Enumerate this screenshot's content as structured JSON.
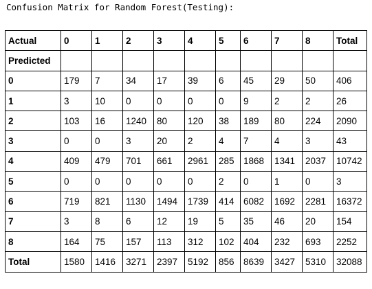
{
  "title": "Confusion Matrix for Random Forest(Testing):",
  "table": {
    "header": {
      "corner": "Actual",
      "columns": [
        "0",
        "1",
        "2",
        "3",
        "4",
        "5",
        "6",
        "7",
        "8",
        "Total"
      ]
    },
    "sub_header": "Predicted",
    "rows": [
      {
        "label": "0",
        "cells": [
          "179",
          "7",
          "34",
          "17",
          "39",
          "6",
          "45",
          "29",
          "50",
          "406"
        ]
      },
      {
        "label": "1",
        "cells": [
          "3",
          "10",
          "0",
          "0",
          "0",
          "0",
          "9",
          "2",
          "2",
          "26"
        ]
      },
      {
        "label": "2",
        "cells": [
          "103",
          "16",
          "1240",
          "80",
          "120",
          "38",
          "189",
          "80",
          "224",
          "2090"
        ]
      },
      {
        "label": "3",
        "cells": [
          "0",
          "0",
          "3",
          "20",
          "2",
          "4",
          "7",
          "4",
          "3",
          "43"
        ]
      },
      {
        "label": "4",
        "cells": [
          "409",
          "479",
          "701",
          "661",
          "2961",
          "285",
          "1868",
          "1341",
          "2037",
          "10742"
        ]
      },
      {
        "label": "5",
        "cells": [
          "0",
          "0",
          "0",
          "0",
          "0",
          "2",
          "0",
          "1",
          "0",
          "3"
        ]
      },
      {
        "label": "6",
        "cells": [
          "719",
          "821",
          "1130",
          "1494",
          "1739",
          "414",
          "6082",
          "1692",
          "2281",
          "16372"
        ]
      },
      {
        "label": "7",
        "cells": [
          "3",
          "8",
          "6",
          "12",
          "19",
          "5",
          "35",
          "46",
          "20",
          "154"
        ]
      },
      {
        "label": "8",
        "cells": [
          "164",
          "75",
          "157",
          "113",
          "312",
          "102",
          "404",
          "232",
          "693",
          "2252"
        ]
      },
      {
        "label": "Total",
        "cells": [
          "1580",
          "1416",
          "3271",
          "2397",
          "5192",
          "856",
          "8639",
          "3427",
          "5310",
          "32088"
        ]
      }
    ]
  }
}
